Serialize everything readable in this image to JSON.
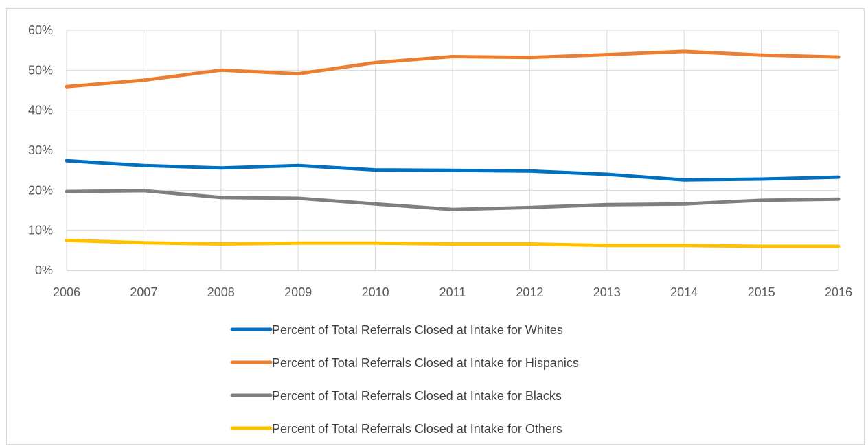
{
  "chart_data": {
    "type": "line",
    "title": "",
    "xlabel": "",
    "ylabel": "",
    "x": [
      "2006",
      "2007",
      "2008",
      "2009",
      "2010",
      "2011",
      "2012",
      "2013",
      "2014",
      "2015",
      "2016"
    ],
    "ylim": [
      0,
      0.6
    ],
    "yticks": [
      0,
      0.1,
      0.2,
      0.3,
      0.4,
      0.5,
      0.6
    ],
    "ytick_labels": [
      "0%",
      "10%",
      "20%",
      "30%",
      "40%",
      "50%",
      "60%"
    ],
    "grid": true,
    "legend_position": "bottom",
    "series": [
      {
        "name": "Percent of Total Referrals Closed at Intake for Whites",
        "color": "#0070C0",
        "values": [
          0.274,
          0.262,
          0.256,
          0.262,
          0.251,
          0.25,
          0.248,
          0.24,
          0.226,
          0.228,
          0.233
        ]
      },
      {
        "name": "Percent of Total Referrals Closed at Intake for Hispanics",
        "color": "#ED7D31",
        "values": [
          0.459,
          0.475,
          0.5,
          0.491,
          0.519,
          0.534,
          0.532,
          0.539,
          0.547,
          0.538,
          0.533
        ]
      },
      {
        "name": "Percent of Total Referrals Closed at Intake for Blacks",
        "color": "#7F7F7F",
        "values": [
          0.197,
          0.199,
          0.182,
          0.18,
          0.166,
          0.152,
          0.157,
          0.164,
          0.166,
          0.175,
          0.178
        ]
      },
      {
        "name": "Percent of Total Referrals Closed at Intake for Others",
        "color": "#FFC000",
        "values": [
          0.075,
          0.069,
          0.066,
          0.068,
          0.068,
          0.066,
          0.066,
          0.062,
          0.062,
          0.06,
          0.06
        ]
      }
    ]
  }
}
